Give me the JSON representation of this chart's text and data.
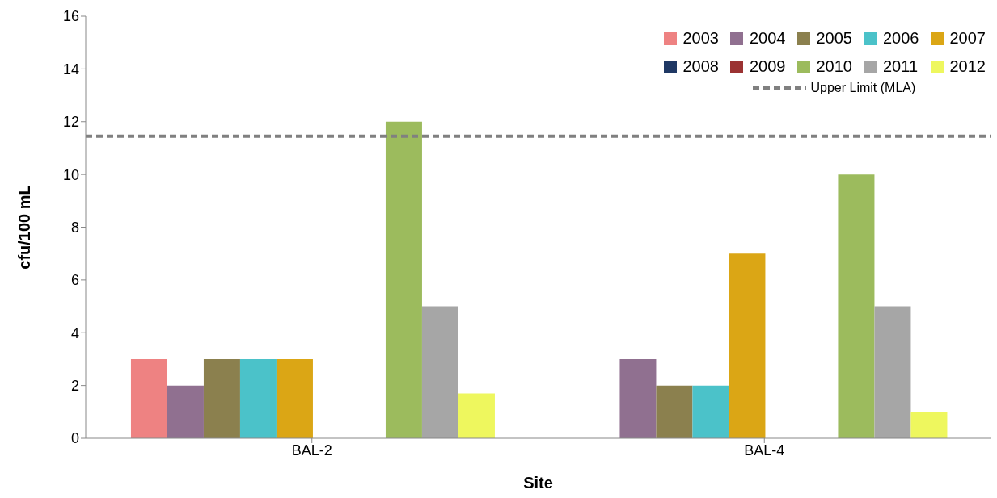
{
  "chart_data": {
    "type": "bar",
    "xlabel": "Site",
    "ylabel": "cfu/100 mL",
    "categories": [
      "BAL-2",
      "BAL-4"
    ],
    "series": [
      {
        "name": "2003",
        "color": "#ee8282",
        "values": [
          3,
          null
        ]
      },
      {
        "name": "2004",
        "color": "#907090",
        "values": [
          2,
          3
        ]
      },
      {
        "name": "2005",
        "color": "#8b804e",
        "values": [
          3,
          2
        ]
      },
      {
        "name": "2006",
        "color": "#4bc2c9",
        "values": [
          3,
          2
        ]
      },
      {
        "name": "2007",
        "color": "#dba615",
        "values": [
          3,
          7
        ]
      },
      {
        "name": "2008",
        "color": "#1f3864",
        "values": [
          null,
          null
        ]
      },
      {
        "name": "2009",
        "color": "#9b3232",
        "values": [
          null,
          null
        ]
      },
      {
        "name": "2010",
        "color": "#9cbb5d",
        "values": [
          12,
          10
        ]
      },
      {
        "name": "2011",
        "color": "#a6a6a6",
        "values": [
          5,
          5
        ]
      },
      {
        "name": "2012",
        "color": "#eef75e",
        "values": [
          1.7,
          1
        ]
      }
    ],
    "ylim": [
      0,
      16
    ],
    "yticks": [
      0,
      2,
      4,
      6,
      8,
      10,
      12,
      14,
      16
    ],
    "grid": false,
    "legend": "top right",
    "ref_lines": [
      {
        "axis": "y",
        "value": 11.45,
        "label": "Upper Limit (MLA)",
        "color": "#808080",
        "line_style": "dashed"
      }
    ]
  }
}
